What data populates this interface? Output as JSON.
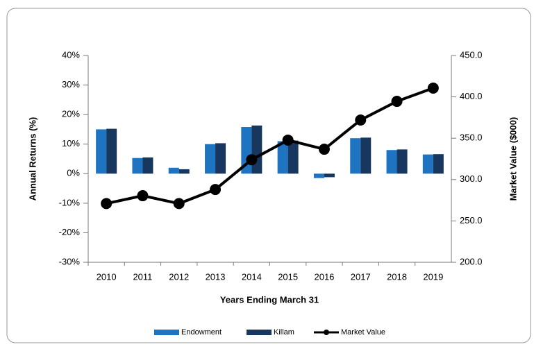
{
  "chart_data": {
    "type": "bar-line",
    "categories": [
      "2010",
      "2011",
      "2012",
      "2013",
      "2014",
      "2015",
      "2016",
      "2017",
      "2018",
      "2019"
    ],
    "series": [
      {
        "name": "Endowment",
        "color": "#1f74c1",
        "values": [
          15,
          5.3,
          2,
          10,
          15.8,
          11,
          -1.5,
          12,
          8,
          6.5
        ]
      },
      {
        "name": "Killam",
        "color": "#17375e",
        "values": [
          15.2,
          5.5,
          1.5,
          10.3,
          16.3,
          11.2,
          -1.2,
          12.2,
          8.2,
          6.6
        ]
      },
      {
        "name": "Market Value",
        "color": "#000000",
        "axis": "y2",
        "values": [
          271,
          280.5,
          271,
          288,
          324,
          347.7,
          336.7,
          372,
          394.6,
          410.6
        ]
      }
    ],
    "y_label": "Annual Returns (%)",
    "y2_label": "Market Value ($000)",
    "x_label": "Years Ending March 31",
    "ylim": [
      -30,
      40
    ],
    "yticks": [
      {
        "value": -30,
        "label": "-30%"
      },
      {
        "value": -20,
        "label": "-20%"
      },
      {
        "value": -10,
        "label": "-10%"
      },
      {
        "value": 0,
        "label": "0%"
      },
      {
        "value": 10,
        "label": "10%"
      },
      {
        "value": 20,
        "label": "20%"
      },
      {
        "value": 30,
        "label": "30%"
      },
      {
        "value": 40,
        "label": "40%"
      }
    ],
    "y2lim": [
      200,
      450
    ],
    "y2ticks": [
      {
        "value": 200,
        "label": "200.0"
      },
      {
        "value": 250,
        "label": "250.0"
      },
      {
        "value": 300,
        "label": "300.0"
      },
      {
        "value": 350,
        "label": "350.0"
      },
      {
        "value": 400,
        "label": "400.0"
      },
      {
        "value": 450,
        "label": "450.0"
      }
    ],
    "legend": "bottom"
  }
}
